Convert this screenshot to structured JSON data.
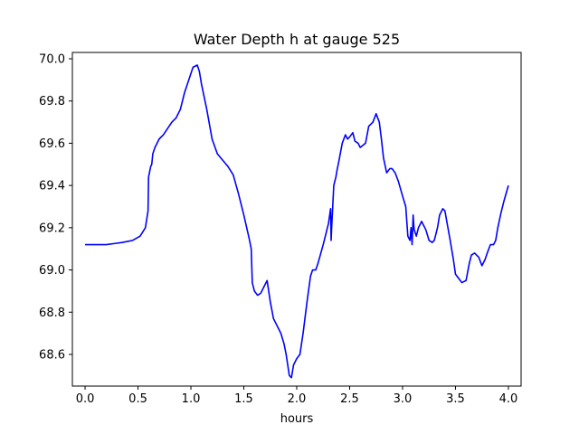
{
  "chart_data": {
    "type": "line",
    "title": "Water Depth h at gauge 525",
    "xlabel": "hours",
    "ylabel": "",
    "xlim": [
      -0.12,
      4.12
    ],
    "ylim": [
      68.45,
      70.03
    ],
    "xticks": [
      0.0,
      0.5,
      1.0,
      1.5,
      2.0,
      2.5,
      3.0,
      3.5,
      4.0
    ],
    "xtick_labels": [
      "0.0",
      "0.5",
      "1.0",
      "1.5",
      "2.0",
      "2.5",
      "3.0",
      "3.5",
      "4.0"
    ],
    "yticks": [
      68.6,
      68.8,
      69.0,
      69.2,
      69.4,
      69.6,
      69.8,
      70.0
    ],
    "ytick_labels": [
      "68.6",
      "68.8",
      "69.0",
      "69.2",
      "69.4",
      "69.6",
      "69.8",
      "70.0"
    ],
    "grid": false,
    "series": [
      {
        "color": "#0000ff",
        "x": [
          0.0,
          0.2,
          0.35,
          0.45,
          0.52,
          0.57,
          0.595,
          0.6,
          0.62,
          0.63,
          0.64,
          0.66,
          0.7,
          0.74,
          0.78,
          0.82,
          0.86,
          0.9,
          0.94,
          0.98,
          1.02,
          1.06,
          1.08,
          1.1,
          1.15,
          1.2,
          1.25,
          1.3,
          1.35,
          1.4,
          1.45,
          1.5,
          1.55,
          1.57,
          1.58,
          1.6,
          1.63,
          1.66,
          1.7,
          1.72,
          1.75,
          1.78,
          1.8,
          1.85,
          1.88,
          1.9,
          1.93,
          1.95,
          1.97,
          2.0,
          2.03,
          2.06,
          2.1,
          2.13,
          2.15,
          2.18,
          2.2,
          2.25,
          2.28,
          2.3,
          2.32,
          2.325,
          2.33,
          2.34,
          2.35,
          2.37,
          2.38,
          2.4,
          2.43,
          2.46,
          2.48,
          2.5,
          2.53,
          2.55,
          2.58,
          2.6,
          2.65,
          2.68,
          2.72,
          2.75,
          2.78,
          2.8,
          2.82,
          2.85,
          2.88,
          2.9,
          2.93,
          2.96,
          3.0,
          3.03,
          3.05,
          3.07,
          3.08,
          3.09,
          3.1,
          3.105,
          3.11,
          3.13,
          3.15,
          3.18,
          3.22,
          3.25,
          3.28,
          3.3,
          3.33,
          3.35,
          3.38,
          3.4,
          3.45,
          3.48,
          3.5,
          3.53,
          3.56,
          3.6,
          3.63,
          3.65,
          3.68,
          3.72,
          3.75,
          3.78,
          3.8,
          3.83,
          3.86,
          3.88,
          3.9,
          3.93,
          3.96,
          4.0
        ],
        "y": [
          69.12,
          69.12,
          69.13,
          69.14,
          69.16,
          69.2,
          69.28,
          69.44,
          69.49,
          69.5,
          69.55,
          69.58,
          69.62,
          69.64,
          69.67,
          69.7,
          69.72,
          69.76,
          69.84,
          69.9,
          69.96,
          69.97,
          69.94,
          69.88,
          69.76,
          69.62,
          69.55,
          69.52,
          69.49,
          69.45,
          69.36,
          69.26,
          69.15,
          69.1,
          68.94,
          68.9,
          68.88,
          68.89,
          68.93,
          68.95,
          68.85,
          68.77,
          68.75,
          68.7,
          68.65,
          68.6,
          68.5,
          68.49,
          68.55,
          68.58,
          68.6,
          68.7,
          68.86,
          68.97,
          69.0,
          69.0,
          69.03,
          69.12,
          69.18,
          69.22,
          69.29,
          69.14,
          69.2,
          69.3,
          69.4,
          69.44,
          69.47,
          69.52,
          69.6,
          69.64,
          69.62,
          69.63,
          69.65,
          69.61,
          69.6,
          69.58,
          69.6,
          69.68,
          69.7,
          69.74,
          69.7,
          69.62,
          69.53,
          69.46,
          69.48,
          69.48,
          69.46,
          69.42,
          69.35,
          69.3,
          69.16,
          69.14,
          69.2,
          69.12,
          69.26,
          69.22,
          69.19,
          69.16,
          69.2,
          69.23,
          69.19,
          69.14,
          69.13,
          69.14,
          69.2,
          69.26,
          69.29,
          69.28,
          69.14,
          69.05,
          68.98,
          68.96,
          68.94,
          68.95,
          69.03,
          69.07,
          69.08,
          69.06,
          69.02,
          69.05,
          69.08,
          69.12,
          69.12,
          69.14,
          69.2,
          69.27,
          69.33,
          69.4
        ]
      }
    ]
  }
}
